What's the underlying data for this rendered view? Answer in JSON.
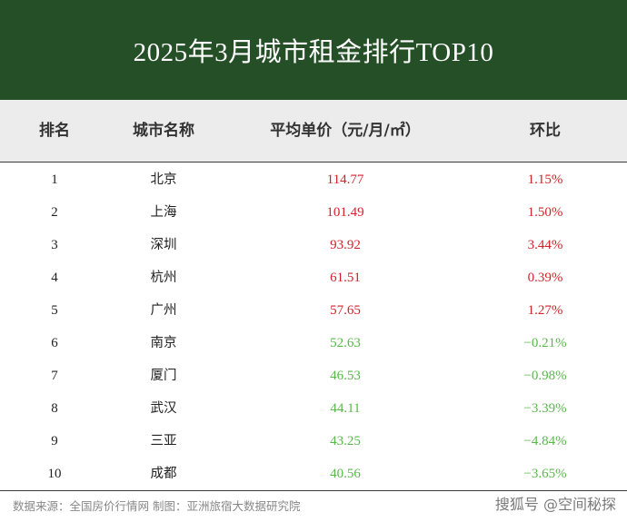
{
  "title": "2025年3月城市租金排行TOP10",
  "headers": {
    "rank": "排名",
    "city": "城市名称",
    "price": "平均单价（元/月/㎡）",
    "change": "环比"
  },
  "colors": {
    "banner": "#254f27",
    "increase": "#d2232a",
    "decrease": "#58b84a"
  },
  "chart_data": {
    "type": "table",
    "title": "2025年3月城市租金排行TOP10",
    "columns": [
      "排名",
      "城市名称",
      "平均单价（元/月/㎡）",
      "环比"
    ],
    "rows": [
      {
        "rank": "1",
        "city": "北京",
        "price": "114.77",
        "change": "1.15%",
        "trend": "up"
      },
      {
        "rank": "2",
        "city": "上海",
        "price": "101.49",
        "change": "1.50%",
        "trend": "up"
      },
      {
        "rank": "3",
        "city": "深圳",
        "price": "93.92",
        "change": "3.44%",
        "trend": "up"
      },
      {
        "rank": "4",
        "city": "杭州",
        "price": "61.51",
        "change": "0.39%",
        "trend": "up"
      },
      {
        "rank": "5",
        "city": "广州",
        "price": "57.65",
        "change": "1.27%",
        "trend": "up"
      },
      {
        "rank": "6",
        "city": "南京",
        "price": "52.63",
        "change": "−0.21%",
        "trend": "down"
      },
      {
        "rank": "7",
        "city": "厦门",
        "price": "46.53",
        "change": "−0.98%",
        "trend": "down"
      },
      {
        "rank": "8",
        "city": "武汉",
        "price": "44.11",
        "change": "−3.39%",
        "trend": "down"
      },
      {
        "rank": "9",
        "city": "三亚",
        "price": "43.25",
        "change": "−4.84%",
        "trend": "down"
      },
      {
        "rank": "10",
        "city": "成都",
        "price": "40.56",
        "change": "−3.65%",
        "trend": "down"
      }
    ]
  },
  "footer": "数据来源：全国房价行情网  制图：亚洲旅宿大数据研究院",
  "watermark": "搜狐号 @空间秘探"
}
